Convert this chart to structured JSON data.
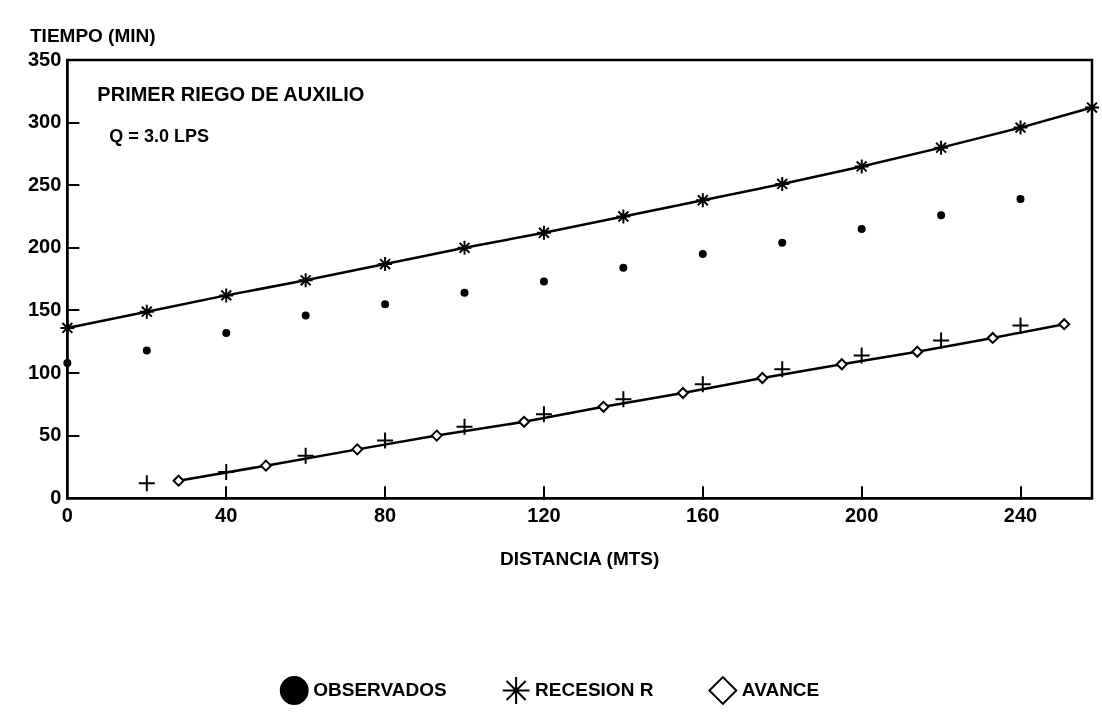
{
  "chart_data": {
    "type": "line",
    "xlabel": "DISTANCIA (MTS)",
    "ylabel": "TIEMPO (MIN)",
    "annotations": [
      "PRIMER RIEGO DE AUXILIO",
      "Q = 3.0 LPS"
    ],
    "xlim": [
      0,
      258
    ],
    "xticks": [
      0,
      40,
      80,
      120,
      160,
      200,
      240
    ],
    "ylim": [
      0,
      350
    ],
    "yticks": [
      0,
      50,
      100,
      150,
      200,
      250,
      300,
      350
    ],
    "grid": false,
    "legend": "bottom",
    "series": [
      {
        "name": "RECESION R",
        "type": "line",
        "marker": "cross",
        "color": "#000000",
        "x": [
          0,
          20,
          40,
          60,
          80,
          100,
          120,
          140,
          160,
          180,
          200,
          220,
          240,
          258
        ],
        "values": [
          136,
          149,
          162,
          174,
          187,
          200,
          212,
          225,
          238,
          251,
          265,
          280,
          296,
          312
        ]
      },
      {
        "name": "OBSERVADOS",
        "type": "scatter",
        "marker": "circle",
        "color": "#000000",
        "x": [
          0,
          20,
          40,
          60,
          80,
          100,
          120,
          140,
          160,
          180,
          200,
          220,
          240
        ],
        "values": [
          108,
          118,
          132,
          146,
          155,
          164,
          173,
          184,
          195,
          204,
          215,
          226,
          239
        ]
      },
      {
        "name": "AVANCE",
        "type": "line",
        "marker": "diamond",
        "color": "#000000",
        "x": [
          28,
          50,
          73,
          93,
          115,
          135,
          155,
          175,
          195,
          214,
          233,
          251
        ],
        "values": [
          14,
          26,
          39,
          50,
          61,
          73,
          84,
          96,
          107,
          117,
          128,
          139
        ]
      },
      {
        "type": "scatter",
        "marker": "cross",
        "color": "#000000",
        "x": [
          20,
          40,
          60,
          80,
          100,
          120,
          140,
          160,
          180,
          200,
          220,
          240
        ],
        "values": [
          12,
          21,
          34,
          46,
          57,
          67,
          79,
          91,
          103,
          114,
          126,
          138
        ]
      }
    ]
  }
}
